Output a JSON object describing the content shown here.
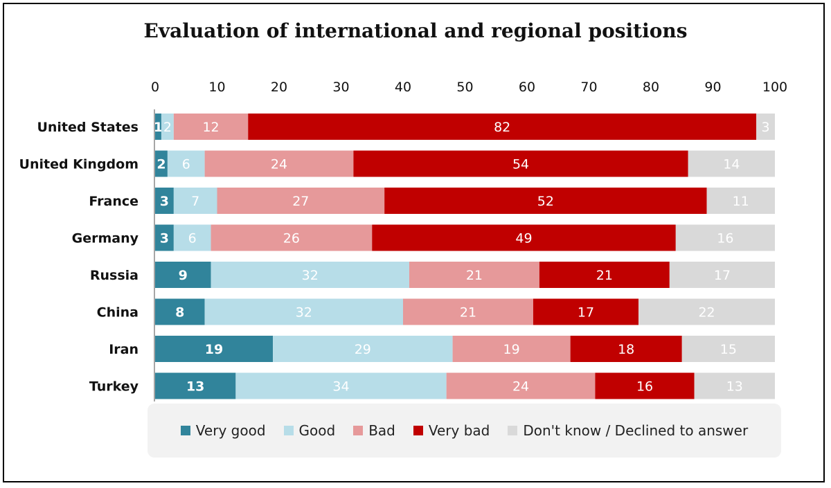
{
  "chart_data": {
    "type": "bar",
    "orientation": "horizontal",
    "stacked": true,
    "title": "Evaluation of international and regional positions",
    "xlim": [
      0,
      100
    ],
    "xticks": [
      0,
      10,
      20,
      30,
      40,
      50,
      60,
      70,
      80,
      90,
      100
    ],
    "categories": [
      "United States",
      "United Kingdom",
      "France",
      "Germany",
      "Russia",
      "China",
      "Iran",
      "Turkey"
    ],
    "series": [
      {
        "name": "Very good",
        "color": "#31849b",
        "values": [
          1,
          2,
          3,
          3,
          9,
          8,
          19,
          13
        ]
      },
      {
        "name": "Good",
        "color": "#b7dde8",
        "values": [
          2,
          6,
          7,
          6,
          32,
          32,
          29,
          34
        ]
      },
      {
        "name": "Bad",
        "color": "#e6999a",
        "values": [
          12,
          24,
          27,
          26,
          21,
          21,
          19,
          24
        ]
      },
      {
        "name": "Very bad",
        "color": "#c00000",
        "values": [
          82,
          54,
          52,
          49,
          21,
          17,
          18,
          16
        ]
      },
      {
        "name": "Don't know / Declined to answer",
        "color": "#d9d9d9",
        "values": [
          3,
          14,
          11,
          16,
          17,
          22,
          15,
          13
        ]
      }
    ],
    "legend_position": "bottom",
    "grid": false
  }
}
